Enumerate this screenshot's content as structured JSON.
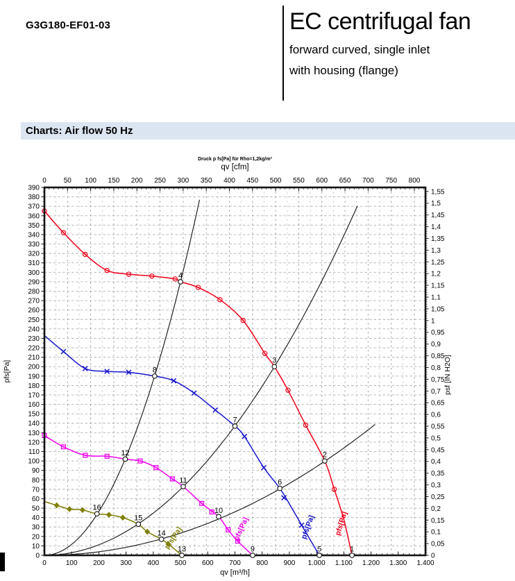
{
  "page": {
    "model": "G3G180-EF01-03",
    "product_title": "EC centrifugal fan",
    "product_subtitle_1": "forward curved, single inlet",
    "product_subtitle_2": "with housing (flange)",
    "section_title": "Charts: Air flow 50 Hz",
    "band_color": "#dbe5f2"
  },
  "chart_data": {
    "type": "line",
    "title": "Druck p fs[Pa] für Rho=1,2kg/m³",
    "axes": {
      "top": {
        "label": "qv [cfm]",
        "min": 0,
        "max": 800,
        "step": 50,
        "tick_labels": [
          "0",
          "50",
          "100",
          "150",
          "200",
          "250",
          "300",
          "350",
          "400",
          "450",
          "500",
          "550",
          "600",
          "650",
          "700",
          "750",
          "800"
        ]
      },
      "bottom": {
        "label": "qv [m³/h]",
        "min": 0,
        "max": 1400,
        "step": 100,
        "tick_labels": [
          "0",
          "100",
          "200",
          "300",
          "400",
          "500",
          "600",
          "700",
          "800",
          "900",
          "1.000",
          "1.100",
          "1.200",
          "1.300",
          "1.400"
        ]
      },
      "left": {
        "label": "pfs[Pa]",
        "min": 0,
        "max": 390,
        "step": 10,
        "tick_labels": [
          "0",
          "10",
          "20",
          "30",
          "40",
          "50",
          "60",
          "70",
          "80",
          "90",
          "100",
          "110",
          "120",
          "130",
          "140",
          "150",
          "160",
          "170",
          "180",
          "190",
          "200",
          "210",
          "220",
          "230",
          "240",
          "250",
          "260",
          "270",
          "280",
          "290",
          "300",
          "310",
          "320",
          "330",
          "340",
          "350",
          "360",
          "370",
          "380",
          "390"
        ]
      },
      "right": {
        "label": "psf [IN H2O]",
        "min": 0,
        "max": 1.55,
        "step": 0.05,
        "tick_labels": [
          "0",
          "0,05",
          "0,1",
          "0,15",
          "0,2",
          "0,25",
          "0,3",
          "0,35",
          "0,4",
          "0,45",
          "0,5",
          "0,55",
          "0,6",
          "0,65",
          "0,7",
          "0,75",
          "0,8",
          "0,85",
          "0,9",
          "0,95",
          "1",
          "1,05",
          "1,1",
          "1,15",
          "1,2",
          "1,25",
          "1,3",
          "1,35",
          "1,4",
          "1,45",
          "1,5",
          "1,55"
        ]
      }
    },
    "series": [
      {
        "name": "fan-curve-speed-1",
        "color": "#f00018",
        "marker": "circle-dot",
        "curve_label": {
          "text": "pfs[Pa]",
          "q": 1098,
          "p": 33,
          "angle": -73
        },
        "points": [
          [
            0,
            365
          ],
          [
            70,
            342
          ],
          [
            150,
            319
          ],
          [
            230,
            302
          ],
          [
            310,
            298
          ],
          [
            395,
            296
          ],
          [
            480,
            293
          ],
          [
            500,
            290
          ],
          [
            565,
            284
          ],
          [
            645,
            271
          ],
          [
            730,
            249
          ],
          [
            810,
            214
          ],
          [
            845,
            200
          ],
          [
            895,
            175
          ],
          [
            960,
            138
          ],
          [
            1030,
            100
          ],
          [
            1065,
            70
          ],
          [
            1100,
            38
          ],
          [
            1130,
            0
          ]
        ],
        "markers": [
          [
            0,
            365
          ],
          [
            70,
            342
          ],
          [
            150,
            319
          ],
          [
            230,
            302
          ],
          [
            310,
            298
          ],
          [
            395,
            296
          ],
          [
            480,
            293
          ],
          [
            565,
            284
          ],
          [
            645,
            271
          ],
          [
            730,
            249
          ],
          [
            810,
            214
          ],
          [
            895,
            175
          ],
          [
            960,
            138
          ],
          [
            1065,
            70
          ]
        ]
      },
      {
        "name": "fan-curve-speed-2",
        "color": "#1414cc",
        "marker": "x",
        "curve_label": {
          "text": "pfs[Pa]",
          "q": 975,
          "p": 29,
          "angle": -70
        },
        "points": [
          [
            0,
            233
          ],
          [
            70,
            216
          ],
          [
            150,
            198
          ],
          [
            230,
            195
          ],
          [
            310,
            194
          ],
          [
            405,
            190
          ],
          [
            475,
            185
          ],
          [
            550,
            172
          ],
          [
            628,
            154
          ],
          [
            700,
            137
          ],
          [
            735,
            126
          ],
          [
            806,
            93
          ],
          [
            865,
            71
          ],
          [
            905,
            52
          ],
          [
            945,
            32
          ],
          [
            1010,
            0
          ]
        ],
        "markers": [
          [
            70,
            216
          ],
          [
            150,
            198
          ],
          [
            230,
            195
          ],
          [
            310,
            194
          ],
          [
            475,
            185
          ],
          [
            550,
            172
          ],
          [
            628,
            154
          ],
          [
            735,
            126
          ],
          [
            806,
            93
          ],
          [
            880,
            61
          ],
          [
            945,
            32
          ]
        ]
      },
      {
        "name": "fan-curve-speed-3",
        "color": "#f000f0",
        "marker": "square",
        "curve_label": {
          "text": "pfs[Pa]",
          "q": 730,
          "p": 27,
          "angle": -66
        },
        "points": [
          [
            0,
            127
          ],
          [
            70,
            115
          ],
          [
            150,
            106
          ],
          [
            230,
            105
          ],
          [
            297,
            102
          ],
          [
            352,
            100
          ],
          [
            410,
            93
          ],
          [
            470,
            81
          ],
          [
            510,
            73
          ],
          [
            578,
            55
          ],
          [
            640,
            41
          ],
          [
            675,
            27
          ],
          [
            710,
            15
          ],
          [
            765,
            0
          ]
        ],
        "markers": [
          [
            0,
            127
          ],
          [
            70,
            115
          ],
          [
            150,
            106
          ],
          [
            230,
            105
          ],
          [
            352,
            100
          ],
          [
            410,
            93
          ],
          [
            470,
            81
          ],
          [
            578,
            55
          ],
          [
            615,
            46
          ],
          [
            675,
            27
          ],
          [
            710,
            15
          ]
        ]
      },
      {
        "name": "fan-curve-speed-4",
        "color": "#7f7f00",
        "marker": "diamond",
        "curve_label": {
          "text": "pfs[Pa]",
          "q": 480,
          "p": 17,
          "angle": -56
        },
        "points": [
          [
            0,
            57
          ],
          [
            45,
            53
          ],
          [
            92,
            49
          ],
          [
            140,
            48
          ],
          [
            193,
            44
          ],
          [
            237,
            43
          ],
          [
            288,
            40
          ],
          [
            345,
            33
          ],
          [
            378,
            25
          ],
          [
            430,
            17
          ],
          [
            455,
            12
          ],
          [
            505,
            0
          ]
        ],
        "markers": [
          [
            45,
            53
          ],
          [
            92,
            49
          ],
          [
            140,
            48
          ],
          [
            237,
            43
          ],
          [
            288,
            40
          ],
          [
            378,
            25
          ],
          [
            455,
            12
          ]
        ]
      }
    ],
    "system_curves": [
      {
        "name": "system-curve-A",
        "k": 0.00116,
        "q_max": 570
      },
      {
        "name": "system-curve-B",
        "k": 0.00028,
        "q_max": 1150
      },
      {
        "name": "system-curve-C",
        "k": 9.4e-05,
        "q_max": 1215
      }
    ],
    "operating_points": [
      {
        "n": "1",
        "q": 1130,
        "p": 0
      },
      {
        "n": "2",
        "q": 1030,
        "p": 100
      },
      {
        "n": "3",
        "q": 845,
        "p": 200
      },
      {
        "n": "4",
        "q": 500,
        "p": 290
      },
      {
        "n": "5",
        "q": 1010,
        "p": 0
      },
      {
        "n": "6",
        "q": 865,
        "p": 71
      },
      {
        "n": "7",
        "q": 700,
        "p": 137
      },
      {
        "n": "8",
        "q": 405,
        "p": 190
      },
      {
        "n": "9",
        "q": 765,
        "p": 0
      },
      {
        "n": "10",
        "q": 640,
        "p": 41
      },
      {
        "n": "11",
        "q": 510,
        "p": 73
      },
      {
        "n": "12",
        "q": 297,
        "p": 102
      },
      {
        "n": "13",
        "q": 505,
        "p": 0
      },
      {
        "n": "14",
        "q": 430,
        "p": 17
      },
      {
        "n": "15",
        "q": 345,
        "p": 33
      },
      {
        "n": "16",
        "q": 193,
        "p": 44
      }
    ],
    "layout": {
      "grid": true,
      "legend": "none",
      "cfm_to_m3h": 1.699,
      "inh2o_to_pa": 248.84
    }
  }
}
